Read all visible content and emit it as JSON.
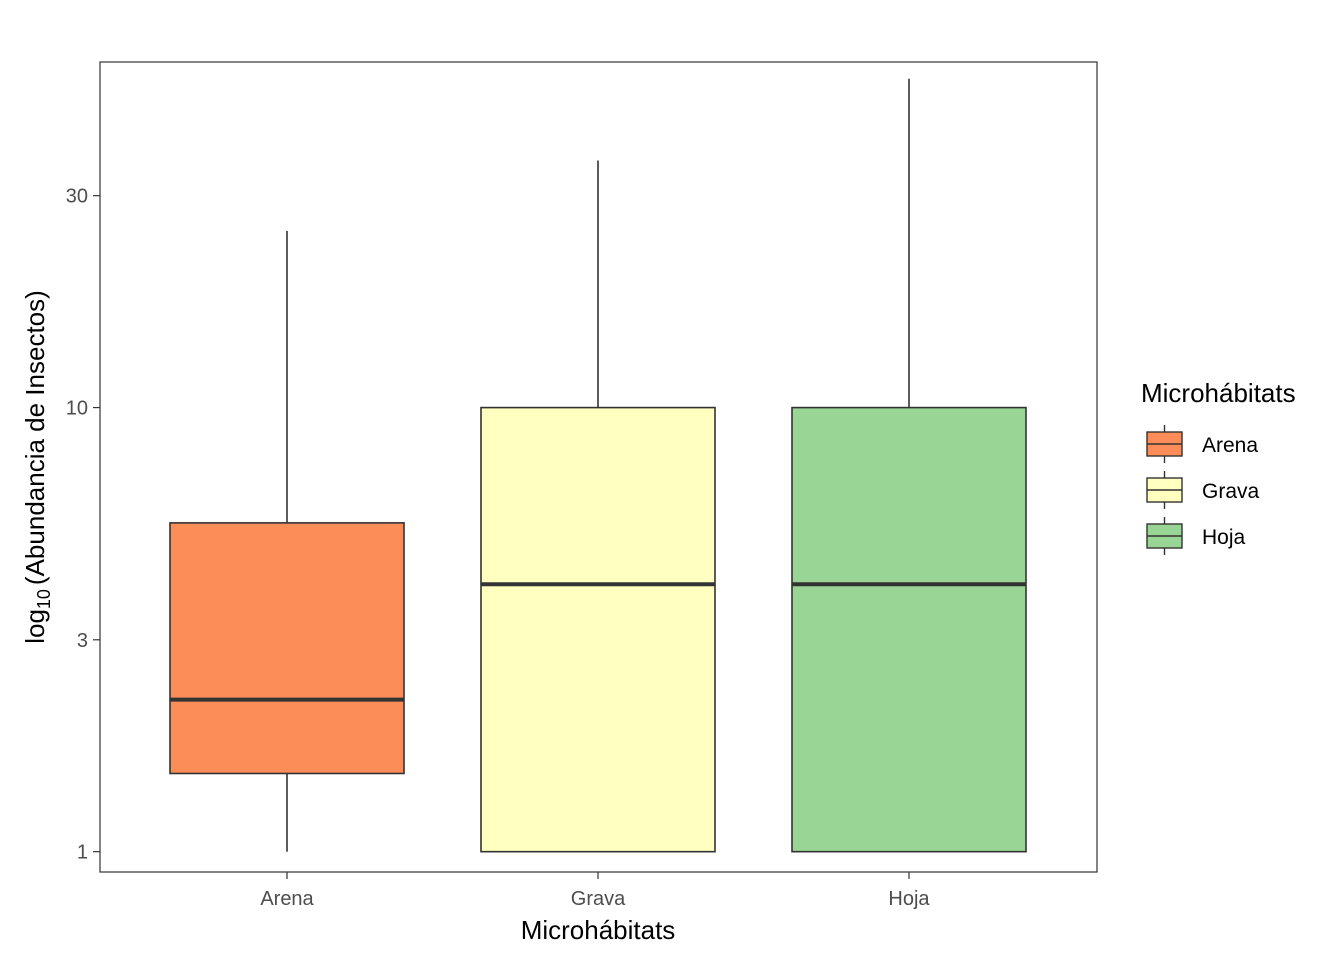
{
  "chart_data": {
    "type": "boxplot",
    "title": "",
    "xlabel": "Microhábitats",
    "ylabel_prefix": "log",
    "ylabel_subscript": "10",
    "ylabel_main": "(Abundancia de Insectos)",
    "y_scale": "log10",
    "ylim": [
      0.9,
      60
    ],
    "yticks": [
      1,
      3,
      10,
      30
    ],
    "ytick_labels": [
      "1",
      "3",
      "10",
      "30"
    ],
    "categories": [
      "Arena",
      "Grava",
      "Hoja"
    ],
    "series": [
      {
        "name": "Arena",
        "min": 1,
        "q1": 1.5,
        "median": 2.2,
        "q3": 5.5,
        "max": 25,
        "fill": "#fc8d59"
      },
      {
        "name": "Grava",
        "min": 1,
        "q1": 1,
        "median": 4,
        "q3": 10,
        "max": 36,
        "fill": "#ffffbf"
      },
      {
        "name": "Hoja",
        "min": 1,
        "q1": 1,
        "median": 4,
        "q3": 10,
        "max": 55,
        "fill": "#99d594"
      }
    ],
    "legend": {
      "title": "Microhábitats",
      "position": "right",
      "entries": [
        "Arena",
        "Grava",
        "Hoja"
      ]
    },
    "grid": false,
    "colors": {
      "stroke": "#333333",
      "panel_border": "#333333",
      "tick_text": "#4d4d4d"
    }
  }
}
